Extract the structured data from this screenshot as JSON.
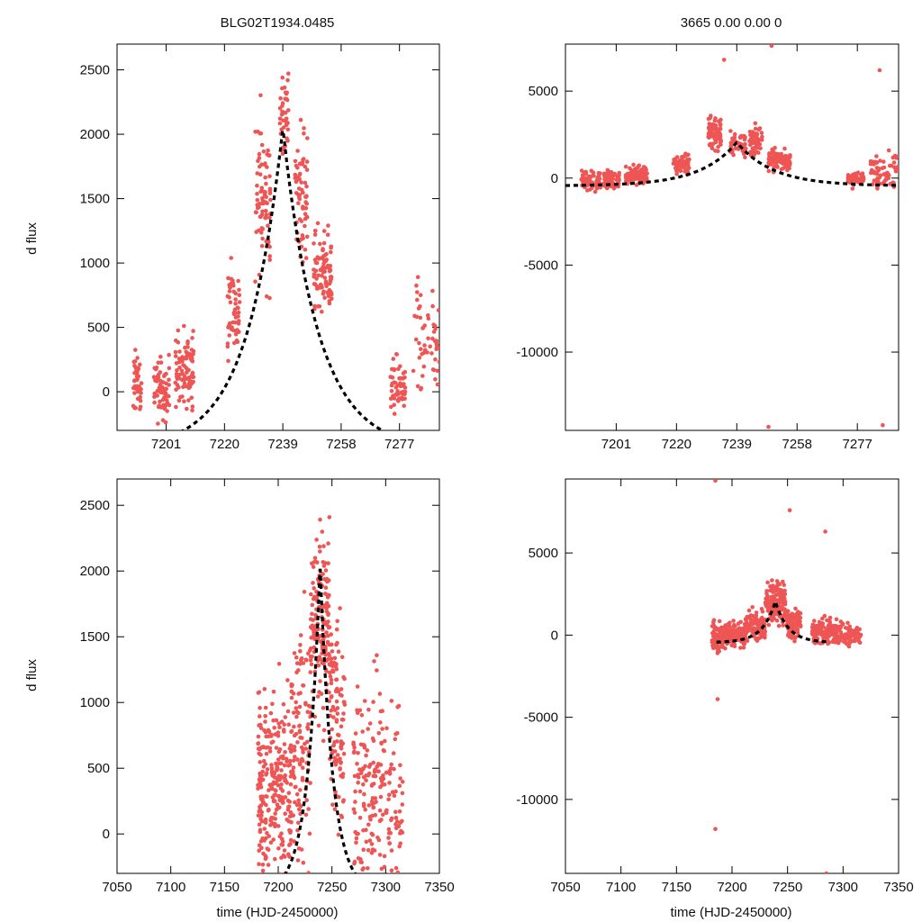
{
  "figure": {
    "title_left": "BLG02T1934.0485",
    "title_right": "3665   0.00   0.00   0",
    "ylabel": "d flux",
    "xlabel": "time (HJD-2450000)"
  },
  "colors": {
    "points": "#ee5555",
    "model": "#000000",
    "frame": "#000000"
  },
  "chart_data": [
    {
      "id": "top-left",
      "type": "scatter",
      "xlim": [
        7185,
        7290
      ],
      "ylim": [
        -300,
        2700
      ],
      "xticks": [
        7201,
        7220,
        7239,
        7258,
        7277
      ],
      "yticks": [
        0,
        500,
        1000,
        1500,
        2000,
        2500
      ],
      "show_xtick_labels": true,
      "show_ylabel": true,
      "title_key": "title_left",
      "clusters": [
        {
          "x0": 7190,
          "x1": 7193,
          "center": 60,
          "spread": 230,
          "n": 45
        },
        {
          "x0": 7197,
          "x1": 7202,
          "center": 20,
          "spread": 230,
          "n": 70
        },
        {
          "x0": 7204,
          "x1": 7210,
          "center": 180,
          "spread": 280,
          "n": 90
        },
        {
          "x0": 7221,
          "x1": 7225,
          "center": 650,
          "spread": 360,
          "n": 55
        },
        {
          "x0": 7230,
          "x1": 7235,
          "center": 1500,
          "spread": 600,
          "n": 80
        },
        {
          "x0": 7238,
          "x1": 7241,
          "center": 2150,
          "spread": 350,
          "n": 40
        },
        {
          "x0": 7243,
          "x1": 7247,
          "center": 1550,
          "spread": 500,
          "n": 70
        },
        {
          "x0": 7249,
          "x1": 7255,
          "center": 900,
          "spread": 330,
          "n": 90
        },
        {
          "x0": 7274,
          "x1": 7279,
          "center": 40,
          "spread": 200,
          "n": 55
        },
        {
          "x0": 7281,
          "x1": 7290,
          "center": 450,
          "spread": 450,
          "n": 55
        }
      ],
      "model": {
        "t0": 7239,
        "peak": 2050,
        "tau": 11.5,
        "base": -450
      }
    },
    {
      "id": "top-right",
      "type": "scatter",
      "xlim": [
        7185,
        7290
      ],
      "ylim": [
        -14500,
        7700
      ],
      "xticks": [
        7201,
        7220,
        7239,
        7258,
        7277
      ],
      "yticks": [
        -10000,
        -5000,
        0,
        5000
      ],
      "show_xtick_labels": true,
      "show_ylabel": false,
      "title_key": "title_right",
      "clusters": [
        {
          "x0": 7190,
          "x1": 7196,
          "center": -200,
          "spread": 500,
          "n": 70
        },
        {
          "x0": 7197,
          "x1": 7202,
          "center": -100,
          "spread": 500,
          "n": 80
        },
        {
          "x0": 7204,
          "x1": 7211,
          "center": 200,
          "spread": 500,
          "n": 100
        },
        {
          "x0": 7219,
          "x1": 7224,
          "center": 800,
          "spread": 700,
          "n": 50
        },
        {
          "x0": 7230,
          "x1": 7234,
          "center": 2600,
          "spread": 1000,
          "n": 80
        },
        {
          "x0": 7237,
          "x1": 7242,
          "center": 1900,
          "spread": 700,
          "n": 50
        },
        {
          "x0": 7243,
          "x1": 7247,
          "center": 2200,
          "spread": 900,
          "n": 60
        },
        {
          "x0": 7249,
          "x1": 7256,
          "center": 1000,
          "spread": 500,
          "n": 90
        },
        {
          "x0": 7274,
          "x1": 7279,
          "center": -100,
          "spread": 400,
          "n": 60
        },
        {
          "x0": 7281,
          "x1": 7290,
          "center": 500,
          "spread": 900,
          "n": 70
        }
      ],
      "outliers": [
        [
          7250,
          7600
        ],
        [
          7249,
          -14300
        ],
        [
          7285,
          -14200
        ],
        [
          7284,
          6200
        ],
        [
          7235,
          6800
        ]
      ],
      "model": {
        "t0": 7239,
        "peak": 2050,
        "tau": 11.5,
        "base": -450
      }
    },
    {
      "id": "bottom-left",
      "type": "scatter",
      "xlim": [
        7050,
        7350
      ],
      "ylim": [
        -300,
        2700
      ],
      "xticks": [
        7050,
        7100,
        7150,
        7200,
        7250,
        7300,
        7350
      ],
      "yticks": [
        0,
        500,
        1000,
        1500,
        2000,
        2500
      ],
      "show_xtick_labels": true,
      "show_ylabel": true,
      "show_xlabel": true,
      "clusters": [
        {
          "x0": 7181,
          "x1": 7190,
          "center": 400,
          "spread": 700,
          "n": 90
        },
        {
          "x0": 7190,
          "x1": 7212,
          "center": 300,
          "spread": 700,
          "n": 180
        },
        {
          "x0": 7212,
          "x1": 7230,
          "center": 700,
          "spread": 800,
          "n": 120
        },
        {
          "x0": 7230,
          "x1": 7248,
          "center": 1600,
          "spread": 700,
          "n": 170
        },
        {
          "x0": 7248,
          "x1": 7262,
          "center": 900,
          "spread": 800,
          "n": 100
        },
        {
          "x0": 7270,
          "x1": 7300,
          "center": 350,
          "spread": 700,
          "n": 150
        },
        {
          "x0": 7300,
          "x1": 7316,
          "center": 250,
          "spread": 700,
          "n": 60
        }
      ],
      "model": {
        "t0": 7239,
        "peak": 2050,
        "tau": 11.5,
        "base": -450,
        "xmin": 7180,
        "xmax": 7300
      }
    },
    {
      "id": "bottom-right",
      "type": "scatter",
      "xlim": [
        7050,
        7350
      ],
      "ylim": [
        -14500,
        9500
      ],
      "xticks": [
        7050,
        7100,
        7150,
        7200,
        7250,
        7300,
        7350
      ],
      "yticks": [
        -10000,
        -5000,
        0,
        5000
      ],
      "show_xtick_labels": true,
      "show_ylabel": false,
      "show_xlabel": true,
      "clusters": [
        {
          "x0": 7182,
          "x1": 7192,
          "center": -100,
          "spread": 900,
          "n": 100
        },
        {
          "x0": 7192,
          "x1": 7212,
          "center": 0,
          "spread": 700,
          "n": 170
        },
        {
          "x0": 7212,
          "x1": 7230,
          "center": 500,
          "spread": 800,
          "n": 120
        },
        {
          "x0": 7230,
          "x1": 7248,
          "center": 2000,
          "spread": 1200,
          "n": 170
        },
        {
          "x0": 7248,
          "x1": 7262,
          "center": 700,
          "spread": 800,
          "n": 100
        },
        {
          "x0": 7272,
          "x1": 7300,
          "center": 200,
          "spread": 800,
          "n": 150
        },
        {
          "x0": 7300,
          "x1": 7316,
          "center": 0,
          "spread": 600,
          "n": 60
        }
      ],
      "outliers": [
        [
          7185,
          9400
        ],
        [
          7185,
          -11800
        ],
        [
          7187,
          -3900
        ],
        [
          7250,
          -14800
        ],
        [
          7285,
          -14500
        ],
        [
          7284,
          6300
        ],
        [
          7252,
          7600
        ]
      ],
      "model": {
        "t0": 7239,
        "peak": 2050,
        "tau": 11.5,
        "base": -450,
        "xmin": 7186,
        "xmax": 7288
      }
    }
  ]
}
